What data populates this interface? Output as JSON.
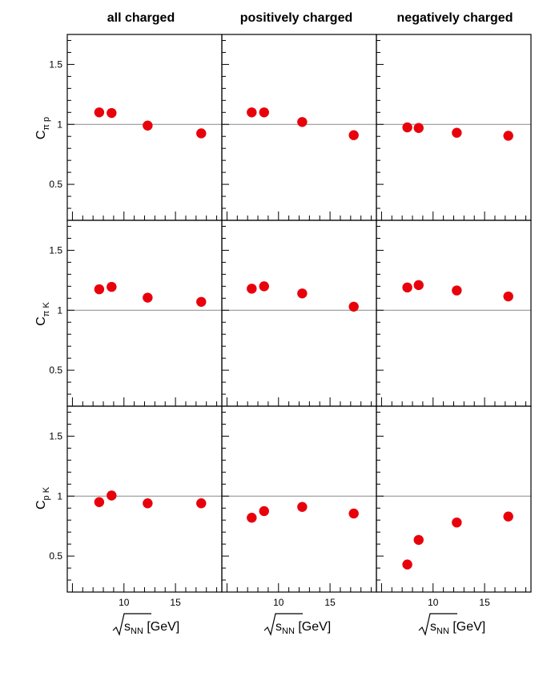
{
  "columns": [
    {
      "title": "all charged"
    },
    {
      "title": "positively charged"
    },
    {
      "title": "negatively charged"
    }
  ],
  "rows": [
    {
      "ylabel": "C",
      "ylabel_sub": "π p"
    },
    {
      "ylabel": "C",
      "ylabel_sub": "π K"
    },
    {
      "ylabel": "C",
      "ylabel_sub": "p K"
    }
  ],
  "xlabel": {
    "prefix": "√",
    "s": "s",
    "sub": "NN",
    "unit": " [GeV]"
  },
  "colors": {
    "marker": "#e8000b",
    "reference_line": "#888888",
    "axis": "#000000"
  },
  "chart_data": {
    "type": "scatter",
    "layout": "3x3 grid of panels with shared axes",
    "xlim": [
      4.5,
      19.5
    ],
    "ylim": [
      0.2,
      1.75
    ],
    "x_tick_labels": [
      "10",
      "15"
    ],
    "x_major_ticks": [
      5,
      10,
      15
    ],
    "y_tick_labels": [
      "0.5",
      "1",
      "1.5"
    ],
    "y_major_ticks": [
      0.5,
      1.0,
      1.5
    ],
    "reference_line_y": 1,
    "grid": false,
    "panels": [
      {
        "row": 0,
        "col": 0,
        "x": [
          7.6,
          8.8,
          12.3,
          17.5
        ],
        "y": [
          1.1,
          1.095,
          0.99,
          0.925
        ]
      },
      {
        "row": 0,
        "col": 1,
        "x": [
          7.4,
          8.6,
          12.3,
          17.3
        ],
        "y": [
          1.1,
          1.1,
          1.02,
          0.91
        ]
      },
      {
        "row": 0,
        "col": 2,
        "x": [
          7.5,
          8.6,
          12.3,
          17.3
        ],
        "y": [
          0.975,
          0.97,
          0.93,
          0.905
        ]
      },
      {
        "row": 1,
        "col": 0,
        "x": [
          7.6,
          8.8,
          12.3,
          17.5
        ],
        "y": [
          1.175,
          1.195,
          1.105,
          1.07
        ]
      },
      {
        "row": 1,
        "col": 1,
        "x": [
          7.4,
          8.6,
          12.3,
          17.3
        ],
        "y": [
          1.18,
          1.2,
          1.14,
          1.03
        ]
      },
      {
        "row": 1,
        "col": 2,
        "x": [
          7.5,
          8.6,
          12.3,
          17.3
        ],
        "y": [
          1.19,
          1.21,
          1.165,
          1.115
        ]
      },
      {
        "row": 2,
        "col": 0,
        "x": [
          7.6,
          8.8,
          12.3,
          17.5
        ],
        "y": [
          0.95,
          1.005,
          0.94,
          0.94
        ]
      },
      {
        "row": 2,
        "col": 1,
        "x": [
          7.4,
          8.6,
          12.3,
          17.3
        ],
        "y": [
          0.82,
          0.875,
          0.91,
          0.855
        ]
      },
      {
        "row": 2,
        "col": 2,
        "x": [
          7.5,
          8.6,
          12.3,
          17.3
        ],
        "y": [
          0.43,
          0.635,
          0.78,
          0.83
        ]
      }
    ]
  }
}
